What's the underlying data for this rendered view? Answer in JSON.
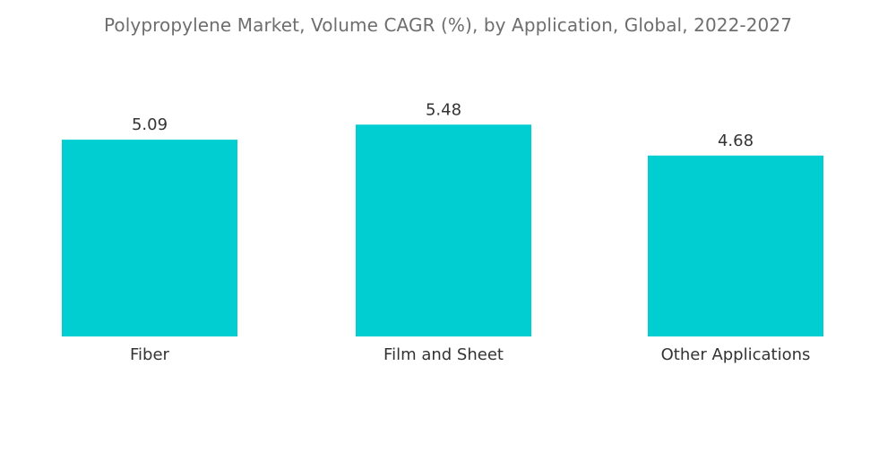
{
  "chart_data": {
    "type": "bar",
    "title": "Polypropylene Market, Volume CAGR (%), by Application, Global, 2022-2027",
    "categories": [
      "Fiber",
      "Film and Sheet",
      "Other Applications"
    ],
    "values": [
      5.09,
      5.48,
      4.68
    ],
    "data_labels": [
      "5.09",
      "5.48",
      "4.68"
    ],
    "bar_color": "#00CED1",
    "xlabel": "",
    "ylabel": "",
    "ylim": [
      0,
      6.2
    ],
    "grid": false,
    "legend": "none"
  }
}
